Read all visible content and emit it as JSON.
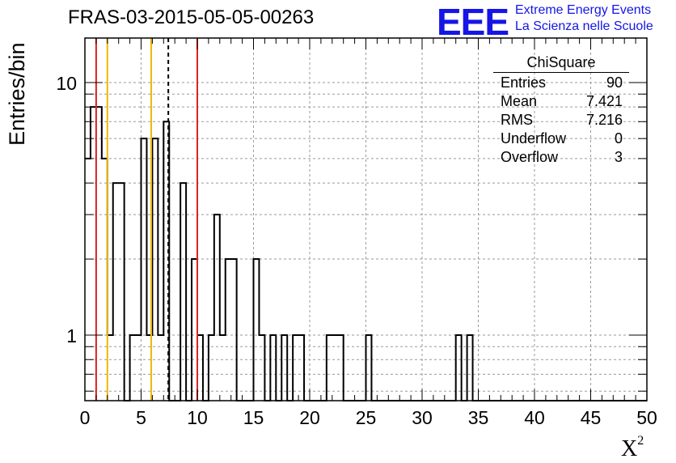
{
  "title": "FRAS-03-2015-05-05-00263",
  "logo": {
    "mark": "EEE",
    "line1": "Extreme Energy Events",
    "line2": "La Scienza nelle Scuole",
    "color": "#1515e6"
  },
  "stats_box": {
    "title": "ChiSquare",
    "rows": [
      {
        "label": "Entries",
        "value": "90"
      },
      {
        "label": "Mean",
        "value": "7.421"
      },
      {
        "label": "RMS",
        "value": "7.216"
      },
      {
        "label": "Underflow",
        "value": "0"
      },
      {
        "label": "Overflow",
        "value": "3"
      }
    ]
  },
  "chart_data": {
    "type": "histogram",
    "xlabel_base": "X",
    "xlabel_sup": "2",
    "ylabel": "Entries/bin",
    "xlim": [
      0,
      50
    ],
    "ylog": true,
    "ylim": [
      0.55,
      15
    ],
    "bin_width": 0.5,
    "grid": true,
    "x_ticks": [
      "0",
      "5",
      "10",
      "15",
      "20",
      "25",
      "30",
      "35",
      "40",
      "45",
      "50"
    ],
    "y_ticks": [
      {
        "value": 1,
        "label": "1"
      },
      {
        "value": 10,
        "label": "10"
      }
    ],
    "bins": [
      {
        "x": 0.0,
        "count": 5
      },
      {
        "x": 0.5,
        "count": 8
      },
      {
        "x": 1.0,
        "count": 8
      },
      {
        "x": 1.5,
        "count": 5
      },
      {
        "x": 2.0,
        "count": 1
      },
      {
        "x": 2.5,
        "count": 4
      },
      {
        "x": 3.0,
        "count": 4
      },
      {
        "x": 4.0,
        "count": 1
      },
      {
        "x": 4.5,
        "count": 1
      },
      {
        "x": 5.0,
        "count": 6
      },
      {
        "x": 5.5,
        "count": 1
      },
      {
        "x": 6.0,
        "count": 6
      },
      {
        "x": 6.5,
        "count": 1
      },
      {
        "x": 7.0,
        "count": 7
      },
      {
        "x": 8.5,
        "count": 4
      },
      {
        "x": 9.5,
        "count": 2
      },
      {
        "x": 10.0,
        "count": 1
      },
      {
        "x": 11.0,
        "count": 1
      },
      {
        "x": 11.5,
        "count": 3
      },
      {
        "x": 12.0,
        "count": 1
      },
      {
        "x": 12.5,
        "count": 2
      },
      {
        "x": 13.0,
        "count": 2
      },
      {
        "x": 15.0,
        "count": 2
      },
      {
        "x": 15.5,
        "count": 1
      },
      {
        "x": 16.0,
        "count": 0
      },
      {
        "x": 16.5,
        "count": 1
      },
      {
        "x": 17.5,
        "count": 1
      },
      {
        "x": 18.5,
        "count": 1
      },
      {
        "x": 19.0,
        "count": 1
      },
      {
        "x": 21.5,
        "count": 1
      },
      {
        "x": 22.0,
        "count": 1
      },
      {
        "x": 22.5,
        "count": 1
      },
      {
        "x": 25.0,
        "count": 1
      },
      {
        "x": 33.0,
        "count": 1
      },
      {
        "x": 34.0,
        "count": 1
      }
    ],
    "reference_lines": [
      {
        "x": 1.0,
        "color": "#dd2222",
        "style": "solid"
      },
      {
        "x": 2.0,
        "color": "#f0b800",
        "style": "solid"
      },
      {
        "x": 5.9,
        "color": "#f0b800",
        "style": "solid"
      },
      {
        "x": 7.421,
        "color": "#000000",
        "style": "dashed"
      },
      {
        "x": 10.0,
        "color": "#dd2222",
        "style": "solid"
      }
    ]
  }
}
